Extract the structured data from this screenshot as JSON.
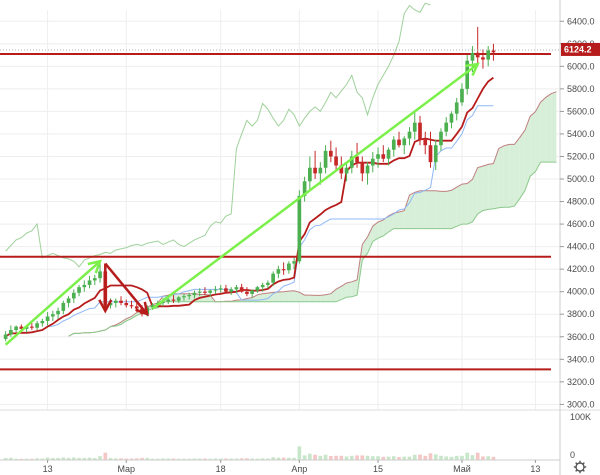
{
  "chart_data": {
    "type": "candlestick",
    "title": "",
    "colors": {
      "up": "#4caf50",
      "down": "#c62828",
      "cloud_fill": "#d7efd8",
      "cloud_fill_bear": "#f9d6d8",
      "level_line": "#b71c1c",
      "trend_arrow": "#7cf04a",
      "down_arrow": "#b71c1c",
      "tenkan": "#b71c1c",
      "kijun": "#8fb8f5",
      "span_a": "#c08080",
      "span_b": "#8cc98c",
      "chikou": "#9fd19a",
      "price_tag": "#b71c1c",
      "grid": "#eeeeee"
    },
    "y_axis": {
      "min": 2950,
      "max": 6500,
      "ticks": [
        "6400.0",
        "6200.0",
        "6000.0",
        "5800.0",
        "5600.0",
        "5400.0",
        "5200.0",
        "5000.0",
        "4800.0",
        "4600.0",
        "4400.0",
        "4200.0",
        "4000.0",
        "3800.0",
        "3600.0",
        "3400.0",
        "3200.0",
        "3000.0"
      ],
      "tick_values": [
        6400,
        6200,
        6000,
        5800,
        5600,
        5400,
        5200,
        5000,
        4800,
        4600,
        4400,
        4200,
        4000,
        3800,
        3600,
        3400,
        3200,
        3000
      ]
    },
    "x_axis": {
      "labels": [
        "13",
        "Мар",
        "18",
        "Апр",
        "15",
        "Май",
        "13"
      ],
      "label_index": [
        8,
        23,
        41,
        56,
        71,
        87,
        101
      ]
    },
    "last_price": "6124.2",
    "horizontal_levels": [
      6110,
      4310,
      3310
    ],
    "volume_axis": {
      "ticks": [
        "100K",
        "0"
      ],
      "max": 120000
    },
    "candles": [
      [
        3580,
        3650,
        3560,
        3620
      ],
      [
        3620,
        3700,
        3600,
        3660
      ],
      [
        3660,
        3700,
        3640,
        3690
      ],
      [
        3690,
        3710,
        3650,
        3670
      ],
      [
        3670,
        3700,
        3640,
        3690
      ],
      [
        3690,
        3720,
        3660,
        3680
      ],
      [
        3680,
        3740,
        3660,
        3720
      ],
      [
        3720,
        3760,
        3690,
        3740
      ],
      [
        3740,
        3820,
        3700,
        3780
      ],
      [
        3780,
        3830,
        3740,
        3800
      ],
      [
        3800,
        3860,
        3760,
        3830
      ],
      [
        3830,
        3920,
        3800,
        3900
      ],
      [
        3900,
        3960,
        3860,
        3940
      ],
      [
        3940,
        4020,
        3900,
        3990
      ],
      [
        3990,
        4060,
        3960,
        4040
      ],
      [
        4040,
        4100,
        4000,
        4060
      ],
      [
        4060,
        4140,
        4030,
        4100
      ],
      [
        4100,
        4150,
        4060,
        4120
      ],
      [
        4120,
        4260,
        4080,
        4180
      ],
      [
        4180,
        4200,
        3850,
        3880
      ],
      [
        3880,
        3940,
        3850,
        3900
      ],
      [
        3900,
        3940,
        3860,
        3920
      ],
      [
        3920,
        3960,
        3880,
        3900
      ],
      [
        3900,
        3930,
        3860,
        3880
      ],
      [
        3880,
        3920,
        3850,
        3870
      ],
      [
        3870,
        3900,
        3820,
        3850
      ],
      [
        3850,
        3880,
        3780,
        3800
      ],
      [
        3800,
        3880,
        3780,
        3860
      ],
      [
        3860,
        3900,
        3840,
        3880
      ],
      [
        3880,
        3920,
        3860,
        3900
      ],
      [
        3900,
        3940,
        3870,
        3910
      ],
      [
        3910,
        3960,
        3890,
        3930
      ],
      [
        3930,
        3970,
        3900,
        3920
      ],
      [
        3920,
        3960,
        3900,
        3950
      ],
      [
        3950,
        3980,
        3920,
        3960
      ],
      [
        3960,
        3990,
        3930,
        3970
      ],
      [
        3970,
        4010,
        3940,
        3990
      ],
      [
        3990,
        4030,
        3960,
        4000
      ],
      [
        4000,
        4040,
        3970,
        3990
      ],
      [
        3990,
        4020,
        3960,
        4010
      ],
      [
        4010,
        4050,
        3980,
        4020
      ],
      [
        4020,
        4060,
        3990,
        4030
      ],
      [
        4030,
        4060,
        3990,
        4000
      ],
      [
        4000,
        4040,
        3970,
        4020
      ],
      [
        4020,
        4060,
        3990,
        4040
      ],
      [
        4040,
        4070,
        3990,
        4000
      ],
      [
        4000,
        4040,
        3960,
        3980
      ],
      [
        3980,
        4020,
        3950,
        4010
      ],
      [
        4010,
        4050,
        3990,
        4040
      ],
      [
        4040,
        4080,
        4000,
        4060
      ],
      [
        4060,
        4100,
        4030,
        4080
      ],
      [
        4080,
        4180,
        4050,
        4160
      ],
      [
        4160,
        4230,
        4120,
        4200
      ],
      [
        4200,
        4260,
        4150,
        4190
      ],
      [
        4190,
        4270,
        4160,
        4250
      ],
      [
        4250,
        4300,
        4200,
        4270
      ],
      [
        4270,
        4900,
        4250,
        4850
      ],
      [
        4850,
        5020,
        4800,
        4980
      ],
      [
        4980,
        5200,
        4900,
        5100
      ],
      [
        5100,
        5250,
        5000,
        5050
      ],
      [
        5050,
        5150,
        4950,
        5100
      ],
      [
        5100,
        5300,
        5050,
        5250
      ],
      [
        5250,
        5340,
        5150,
        5200
      ],
      [
        5200,
        5280,
        5080,
        5120
      ],
      [
        5120,
        5200,
        5000,
        5050
      ],
      [
        5050,
        5150,
        4980,
        5100
      ],
      [
        5100,
        5250,
        5050,
        5200
      ],
      [
        5200,
        5320,
        5100,
        5150
      ],
      [
        5150,
        5200,
        4980,
        5050
      ],
      [
        5050,
        5150,
        4950,
        5120
      ],
      [
        5120,
        5240,
        5060,
        5180
      ],
      [
        5180,
        5280,
        5100,
        5220
      ],
      [
        5220,
        5300,
        5150,
        5180
      ],
      [
        5180,
        5280,
        5120,
        5260
      ],
      [
        5260,
        5380,
        5200,
        5350
      ],
      [
        5350,
        5420,
        5280,
        5300
      ],
      [
        5300,
        5380,
        5220,
        5360
      ],
      [
        5360,
        5460,
        5300,
        5420
      ],
      [
        5420,
        5600,
        5350,
        5500
      ],
      [
        5500,
        5560,
        5300,
        5350
      ],
      [
        5350,
        5420,
        5220,
        5300
      ],
      [
        5300,
        5420,
        5100,
        5150
      ],
      [
        5150,
        5350,
        5080,
        5300
      ],
      [
        5300,
        5450,
        5250,
        5420
      ],
      [
        5420,
        5550,
        5380,
        5500
      ],
      [
        5500,
        5600,
        5450,
        5580
      ],
      [
        5580,
        5720,
        5520,
        5680
      ],
      [
        5680,
        5850,
        5650,
        5800
      ],
      [
        5800,
        6100,
        5750,
        6050
      ],
      [
        6050,
        6180,
        5950,
        6120
      ],
      [
        6120,
        6350,
        6000,
        6080
      ],
      [
        6080,
        6150,
        5980,
        6060
      ],
      [
        6060,
        6180,
        6000,
        6140
      ],
      [
        6140,
        6200,
        6050,
        6124
      ]
    ],
    "annotations": [
      {
        "type": "arrow",
        "from": [
          0,
          3530
        ],
        "to": [
          18,
          4270
        ],
        "color": "trend_arrow"
      },
      {
        "type": "arrow",
        "from": [
          19,
          4250
        ],
        "to": [
          27,
          3800
        ],
        "color": "down_arrow"
      },
      {
        "type": "arrow",
        "from": [
          19,
          4250
        ],
        "to": [
          19,
          3830
        ],
        "color": "down_arrow"
      },
      {
        "type": "arrow",
        "from": [
          28,
          3850
        ],
        "to": [
          90,
          6020
        ],
        "color": "trend_arrow"
      }
    ]
  }
}
